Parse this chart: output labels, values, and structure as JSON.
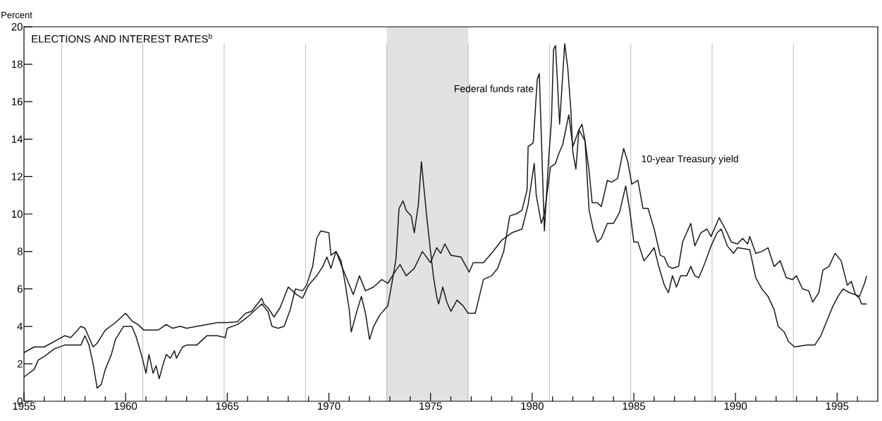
{
  "chart_data": {
    "type": "line",
    "title": "ELECTIONS AND INTEREST RATES$^{b}$",
    "ylabel": "Percent",
    "xlim": [
      1955,
      1997
    ],
    "ylim": [
      0,
      20
    ],
    "xticks": [
      1955,
      {
        "value": 1956,
        "label": null
      },
      {
        "value": 1957,
        "label": null
      },
      {
        "value": 1958,
        "label": null
      },
      {
        "value": 1959,
        "label": null
      },
      1960,
      {
        "value": 1961,
        "label": null
      },
      {
        "value": 1962,
        "label": null
      },
      {
        "value": 1963,
        "label": null
      },
      {
        "value": 1964,
        "label": null
      },
      1965,
      {
        "value": 1966,
        "label": null
      },
      {
        "value": 1967,
        "label": null
      },
      {
        "value": 1968,
        "label": null
      },
      {
        "value": 1969,
        "label": null
      },
      1970,
      {
        "value": 1971,
        "label": null
      },
      {
        "value": 1972,
        "label": null
      },
      {
        "value": 1973,
        "label": null
      },
      {
        "value": 1974,
        "label": null
      },
      1975,
      {
        "value": 1976,
        "label": null
      },
      {
        "value": 1977,
        "label": null
      },
      {
        "value": 1978,
        "label": null
      },
      {
        "value": 1979,
        "label": null
      },
      1980,
      {
        "value": 1981,
        "label": null
      },
      {
        "value": 1982,
        "label": null
      },
      {
        "value": 1983,
        "label": null
      },
      {
        "value": 1984,
        "label": null
      },
      1985,
      {
        "value": 1986,
        "label": null
      },
      {
        "value": 1987,
        "label": null
      },
      {
        "value": 1988,
        "label": null
      },
      {
        "value": 1989,
        "label": null
      },
      1990,
      {
        "value": 1991,
        "label": null
      },
      {
        "value": 1992,
        "label": null
      },
      {
        "value": 1993,
        "label": null
      },
      {
        "value": 1994,
        "label": null
      },
      1995,
      {
        "value": 1996,
        "label": null
      }
    ],
    "yticks": [
      0,
      2,
      4,
      6,
      8,
      10,
      12,
      14,
      16,
      18,
      20
    ],
    "bands": [
      {
        "axis": "x",
        "from": 1972.85,
        "to": 1976.85,
        "color": "#e2e2e2"
      }
    ],
    "ref_lines": [
      {
        "axis": "x",
        "value": 1956.85,
        "color": "#aaaaaa"
      },
      {
        "axis": "x",
        "value": 1960.85,
        "color": "#aaaaaa"
      },
      {
        "axis": "x",
        "value": 1964.85,
        "color": "#aaaaaa"
      },
      {
        "axis": "x",
        "value": 1968.85,
        "color": "#aaaaaa"
      },
      {
        "axis": "x",
        "value": 1972.85,
        "color": "#aaaaaa"
      },
      {
        "axis": "x",
        "value": 1976.85,
        "color": "#aaaaaa"
      },
      {
        "axis": "x",
        "value": 1980.85,
        "color": "#aaaaaa"
      },
      {
        "axis": "x",
        "value": 1984.85,
        "color": "#aaaaaa"
      },
      {
        "axis": "x",
        "value": 1988.85,
        "color": "#aaaaaa"
      },
      {
        "axis": "x",
        "value": 1992.85,
        "color": "#aaaaaa"
      }
    ],
    "series": [
      {
        "name": "Federal funds rate",
        "color": "#1a1a1a",
        "x": [
          1955.0,
          1955.5,
          1955.7,
          1956.0,
          1956.5,
          1957.0,
          1957.8,
          1958.0,
          1958.2,
          1958.4,
          1958.6,
          1958.8,
          1959.0,
          1959.3,
          1959.5,
          1959.9,
          1960.3,
          1960.5,
          1960.8,
          1961.0,
          1961.15,
          1961.35,
          1961.5,
          1961.65,
          1961.85,
          1962.0,
          1962.2,
          1962.4,
          1962.5,
          1962.8,
          1963.0,
          1963.5,
          1964.0,
          1964.5,
          1964.9,
          1965.0,
          1965.5,
          1966.0,
          1966.5,
          1966.7,
          1967.0,
          1967.2,
          1967.5,
          1967.8,
          1968.1,
          1968.35,
          1968.7,
          1968.9,
          1969.2,
          1969.4,
          1969.6,
          1970.0,
          1970.1,
          1970.35,
          1970.6,
          1970.8,
          1971.0,
          1971.1,
          1971.4,
          1971.6,
          1971.8,
          1972.0,
          1972.2,
          1972.5,
          1972.9,
          1973.1,
          1973.3,
          1973.45,
          1973.65,
          1973.8,
          1974.05,
          1974.2,
          1974.4,
          1974.55,
          1974.8,
          1975.0,
          1975.15,
          1975.3,
          1975.4,
          1975.6,
          1975.8,
          1976.0,
          1976.3,
          1976.6,
          1976.85,
          1977.2,
          1977.4,
          1977.6,
          1978.0,
          1978.3,
          1978.6,
          1978.9,
          1979.2,
          1979.5,
          1979.75,
          1979.8,
          1980.05,
          1980.25,
          1980.35,
          1980.6,
          1980.8,
          1980.95,
          1981.05,
          1981.15,
          1981.35,
          1981.6,
          1981.75,
          1981.9,
          1982.0,
          1982.15,
          1982.3,
          1982.45,
          1982.6,
          1982.8,
          1983.0,
          1983.2,
          1983.4,
          1983.7,
          1984.0,
          1984.3,
          1984.6,
          1984.8,
          1985.0,
          1985.2,
          1985.5,
          1985.8,
          1986.0,
          1986.2,
          1986.5,
          1986.7,
          1986.9,
          1987.1,
          1987.3,
          1987.6,
          1987.8,
          1988.0,
          1988.2,
          1988.5,
          1988.8,
          1989.1,
          1989.3,
          1989.6,
          1989.9,
          1990.1,
          1990.7,
          1991.0,
          1991.3,
          1991.6,
          1991.9,
          1992.1,
          1992.4,
          1992.6,
          1992.9,
          1993.5,
          1993.9,
          1994.2,
          1994.5,
          1994.8,
          1995.1,
          1995.3,
          1995.6,
          1995.9,
          1996.1,
          1996.2,
          1996.45
        ],
        "values": [
          1.3,
          1.7,
          2.2,
          2.4,
          2.8,
          3.0,
          3.0,
          3.5,
          3.0,
          2.0,
          0.7,
          0.9,
          1.7,
          2.5,
          3.3,
          4.0,
          4.0,
          3.5,
          2.4,
          1.5,
          2.5,
          1.5,
          1.9,
          1.2,
          2.0,
          2.5,
          2.3,
          2.7,
          2.3,
          2.9,
          3.0,
          3.0,
          3.5,
          3.5,
          3.4,
          3.9,
          4.1,
          4.5,
          5.0,
          5.2,
          4.8,
          4.0,
          3.9,
          4.0,
          4.9,
          6.0,
          5.9,
          6.2,
          7.2,
          8.7,
          9.1,
          9.0,
          7.8,
          8.0,
          7.5,
          6.3,
          4.9,
          3.7,
          4.9,
          5.6,
          4.7,
          3.3,
          4.0,
          4.6,
          5.1,
          6.3,
          7.6,
          10.3,
          10.7,
          10.2,
          9.9,
          9.0,
          10.5,
          12.8,
          10.0,
          8.0,
          6.6,
          5.6,
          5.2,
          6.1,
          5.3,
          4.8,
          5.4,
          5.1,
          4.7,
          4.7,
          5.6,
          6.5,
          6.7,
          7.1,
          8.0,
          9.9,
          10.0,
          10.2,
          11.3,
          13.6,
          13.8,
          17.2,
          17.5,
          9.1,
          12.8,
          15.0,
          18.8,
          19.0,
          14.8,
          19.1,
          17.8,
          15.6,
          13.3,
          12.4,
          14.5,
          14.2,
          13.9,
          10.2,
          9.2,
          8.5,
          8.7,
          9.5,
          9.5,
          10.1,
          11.5,
          10.2,
          8.5,
          8.5,
          7.5,
          7.9,
          8.2,
          7.3,
          6.2,
          5.8,
          6.7,
          6.1,
          6.7,
          6.7,
          7.2,
          6.7,
          6.6,
          7.4,
          8.3,
          9.0,
          9.2,
          8.3,
          7.9,
          8.2,
          8.1,
          6.6,
          6.0,
          5.6,
          4.9,
          4.0,
          3.7,
          3.2,
          2.9,
          3.0,
          3.0,
          3.5,
          4.3,
          5.1,
          5.7,
          6.0,
          5.8,
          5.7,
          5.5,
          5.2,
          5.2
        ]
      },
      {
        "name": "10-year Treasury yield",
        "color": "#1a1a1a",
        "x": [
          1955.0,
          1955.5,
          1956.0,
          1956.5,
          1957.0,
          1957.3,
          1957.8,
          1958.0,
          1958.4,
          1958.6,
          1959.0,
          1959.5,
          1959.8,
          1960.0,
          1960.3,
          1960.6,
          1960.9,
          1961.3,
          1961.6,
          1962.0,
          1962.3,
          1962.7,
          1963.0,
          1963.5,
          1964.0,
          1964.5,
          1965.0,
          1965.5,
          1965.9,
          1966.2,
          1966.7,
          1966.8,
          1967.0,
          1967.3,
          1967.6,
          1968.0,
          1968.4,
          1968.7,
          1969.0,
          1969.4,
          1969.7,
          1969.9,
          1970.1,
          1970.35,
          1970.6,
          1970.9,
          1971.2,
          1971.5,
          1971.8,
          1972.2,
          1972.6,
          1972.9,
          1973.3,
          1973.5,
          1973.8,
          1974.2,
          1974.6,
          1975.0,
          1975.3,
          1975.5,
          1975.7,
          1976.0,
          1976.5,
          1976.9,
          1977.1,
          1977.6,
          1978.0,
          1978.5,
          1979.0,
          1979.5,
          1979.8,
          1980.1,
          1980.2,
          1980.45,
          1980.6,
          1980.9,
          1981.15,
          1981.3,
          1981.5,
          1981.8,
          1982.0,
          1982.3,
          1982.45,
          1982.6,
          1982.8,
          1982.95,
          1983.2,
          1983.4,
          1983.7,
          1983.9,
          1984.2,
          1984.5,
          1984.7,
          1984.9,
          1985.2,
          1985.45,
          1985.7,
          1986.0,
          1986.3,
          1986.5,
          1986.7,
          1986.9,
          1987.2,
          1987.4,
          1987.8,
          1988.0,
          1988.3,
          1988.6,
          1988.8,
          1989.2,
          1989.5,
          1989.8,
          1990.1,
          1990.35,
          1990.6,
          1990.7,
          1991.0,
          1991.3,
          1991.6,
          1991.9,
          1992.2,
          1992.5,
          1992.8,
          1993.0,
          1993.3,
          1993.6,
          1993.8,
          1994.1,
          1994.3,
          1994.6,
          1994.9,
          1995.2,
          1995.5,
          1995.7,
          1995.9,
          1996.1,
          1996.35,
          1996.45
        ],
        "values": [
          2.6,
          2.9,
          2.9,
          3.2,
          3.5,
          3.4,
          4.0,
          3.9,
          2.9,
          3.1,
          3.8,
          4.2,
          4.5,
          4.7,
          4.3,
          4.1,
          3.8,
          3.8,
          3.8,
          4.1,
          3.9,
          4.0,
          3.9,
          4.0,
          4.1,
          4.2,
          4.2,
          4.25,
          4.7,
          4.8,
          5.5,
          5.2,
          5.0,
          4.5,
          5.0,
          6.1,
          5.7,
          5.5,
          6.2,
          6.7,
          7.2,
          7.7,
          7.1,
          8.0,
          7.3,
          6.5,
          5.7,
          6.7,
          5.9,
          6.1,
          6.5,
          6.3,
          7.0,
          7.3,
          6.7,
          7.1,
          8.0,
          7.4,
          8.2,
          7.9,
          8.4,
          7.8,
          7.7,
          6.9,
          7.4,
          7.4,
          7.9,
          8.6,
          9.0,
          9.2,
          10.5,
          12.7,
          11.0,
          9.5,
          10.0,
          12.5,
          12.7,
          13.2,
          13.7,
          15.3,
          13.6,
          14.5,
          14.8,
          13.9,
          12.3,
          10.6,
          10.6,
          10.4,
          11.8,
          11.7,
          11.9,
          13.5,
          12.8,
          11.6,
          11.8,
          10.3,
          10.3,
          9.2,
          7.8,
          7.7,
          7.2,
          7.1,
          7.2,
          8.5,
          9.5,
          8.3,
          9.0,
          9.2,
          8.8,
          9.8,
          9.2,
          8.5,
          8.4,
          8.7,
          8.4,
          8.8,
          7.9,
          8.0,
          8.2,
          7.2,
          7.5,
          6.6,
          6.5,
          6.7,
          6.0,
          5.9,
          5.3,
          5.8,
          7.0,
          7.2,
          7.9,
          7.5,
          6.2,
          6.4,
          5.7,
          5.6,
          6.3,
          6.7
        ]
      }
    ]
  }
}
